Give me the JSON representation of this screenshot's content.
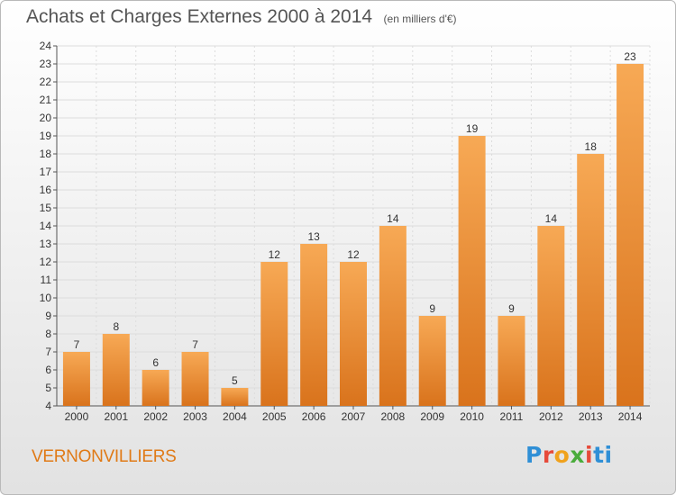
{
  "header": {
    "title": "Achats et Charges Externes 2000 à 2014",
    "unit": "(en milliers d'€)"
  },
  "footer": {
    "commune": "VERNONVILLIERS",
    "logo_text": "Proxiti"
  },
  "colors": {
    "bar_light": "#f7a955",
    "bar_dark": "#d9731c",
    "commune_text": "#e07a16",
    "grid": "#dcdcdc"
  },
  "chart_data": {
    "type": "bar",
    "title": "Achats et Charges Externes 2000 à 2014",
    "subtitle": "(en milliers d'€)",
    "xlabel": "",
    "ylabel": "",
    "categories": [
      "2000",
      "2001",
      "2002",
      "2003",
      "2004",
      "2005",
      "2006",
      "2007",
      "2008",
      "2009",
      "2010",
      "2011",
      "2012",
      "2013",
      "2014"
    ],
    "values": [
      7,
      8,
      6,
      7,
      5,
      12,
      13,
      12,
      14,
      9,
      19,
      9,
      14,
      18,
      23
    ],
    "ylim": [
      4,
      24
    ],
    "yticks": [
      4,
      5,
      6,
      7,
      8,
      9,
      10,
      11,
      12,
      13,
      14,
      15,
      16,
      17,
      18,
      19,
      20,
      21,
      22,
      23,
      24
    ],
    "grid": true,
    "data_labels": true
  }
}
